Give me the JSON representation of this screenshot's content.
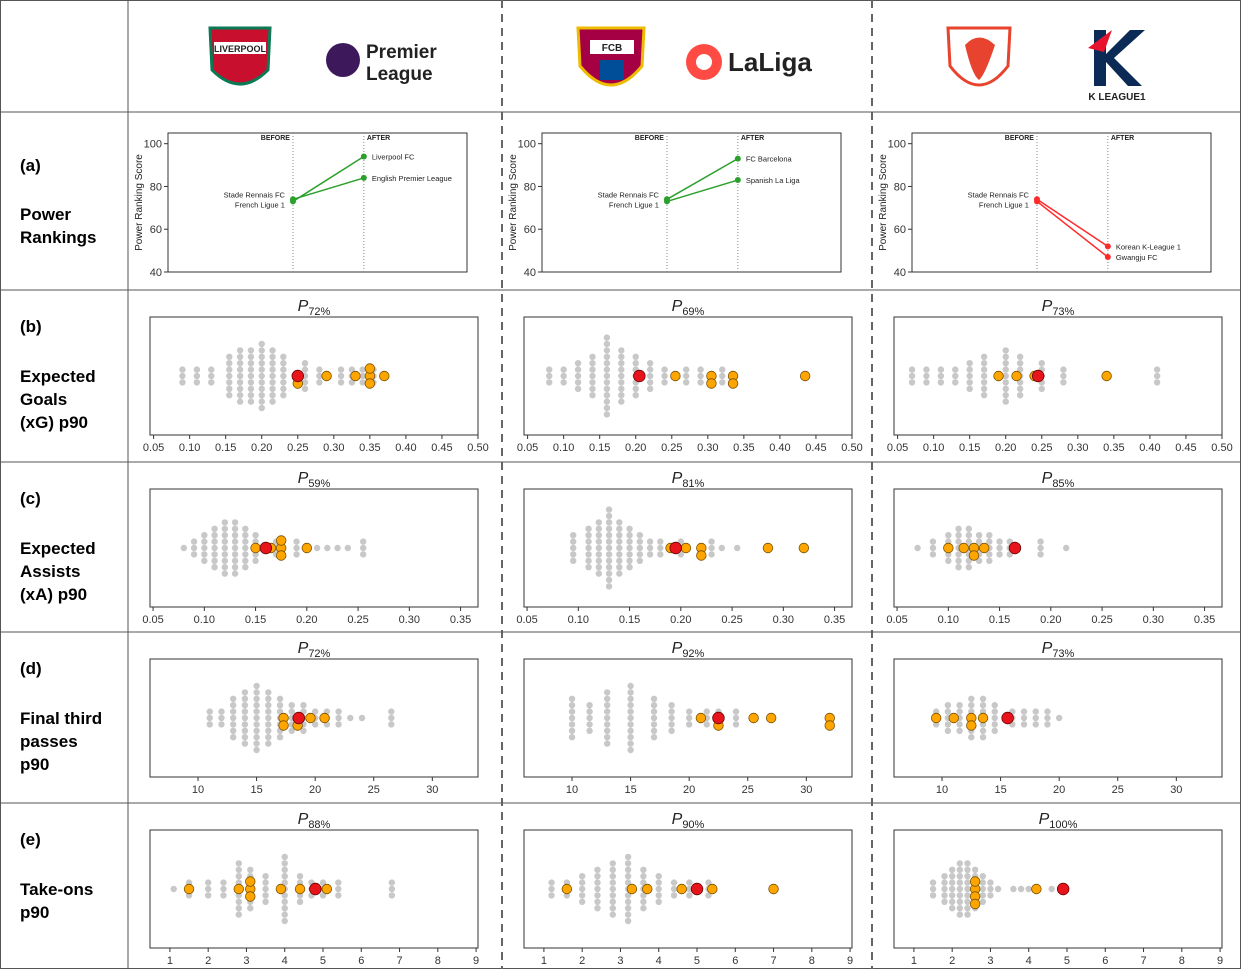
{
  "header": {
    "logos": [
      {
        "crest": "LIVERPOOL",
        "league": [
          "Premier",
          "League"
        ]
      },
      {
        "crest": "FCB",
        "league": [
          "LaLiga"
        ]
      },
      {
        "crest": "",
        "league": [
          "K LEAGUE1"
        ]
      }
    ]
  },
  "power": {
    "type": "line",
    "letter": "(a)",
    "label": [
      "Power",
      "Rankings"
    ],
    "ylabel": "Power Ranking Score",
    "categories": [
      "BEFORE",
      "AFTER"
    ],
    "ylim": [
      40,
      105
    ],
    "yticks": [
      40,
      60,
      80,
      100
    ],
    "charts": [
      {
        "before_labels": [
          "Stade Rennais FC",
          "French Ligue 1"
        ],
        "series": [
          {
            "name": "Liverpool FC",
            "color": "#2ca02c",
            "values": [
              73,
              94
            ]
          },
          {
            "name": "English Premier League",
            "color": "#2ca02c",
            "values": [
              74,
              84
            ]
          }
        ]
      },
      {
        "before_labels": [
          "Stade Rennais FC",
          "French Ligue 1"
        ],
        "series": [
          {
            "name": "FC Barcelona",
            "color": "#2ca02c",
            "values": [
              74,
              93
            ]
          },
          {
            "name": "Spanish La Liga",
            "color": "#2ca02c",
            "values": [
              73,
              83
            ]
          }
        ]
      },
      {
        "before_labels": [
          "Stade Rennais FC",
          "French Ligue 1"
        ],
        "series": [
          {
            "name": "Korean K-League 1",
            "color": "#ff2a2a",
            "values": [
              74,
              52
            ]
          },
          {
            "name": "Gwangju FC",
            "color": "#ff2a2a",
            "values": [
              73,
              47
            ]
          }
        ]
      }
    ]
  },
  "metrics": {
    "colors": {
      "population": "#c8c8c8",
      "peers": "#ffa500",
      "player": "#e8141c"
    },
    "rows": [
      {
        "type": "swarm",
        "letter": "(b)",
        "label": [
          "Expected",
          "Goals",
          "(xG) p90"
        ],
        "xlim": [
          0.045,
          0.5
        ],
        "xticks": [
          0.05,
          {
            "value": 0.1,
            "label": "0.10"
          },
          0.15,
          {
            "value": 0.2,
            "label": "0.20"
          },
          0.25,
          {
            "value": 0.3,
            "label": "0.30"
          },
          0.35,
          {
            "value": 0.4,
            "label": "0.40"
          },
          0.45,
          {
            "value": 0.5,
            "label": "0.50"
          }
        ],
        "charts": [
          {
            "title": "P",
            "title_sub": "72%",
            "gray": {
              "x": [
                0.09,
                0.11,
                0.13,
                0.155,
                0.17,
                0.185,
                0.2,
                0.215,
                0.23,
                0.26,
                0.28,
                0.31,
                0.325,
                0.34,
                0.355
              ],
              "n": [
                3,
                3,
                3,
                7,
                9,
                9,
                11,
                9,
                7,
                5,
                3,
                3,
                3,
                3,
                3
              ]
            },
            "orange": [
              0.25,
              0.25,
              0.29,
              0.33,
              0.35,
              0.35,
              0.35,
              0.37
            ],
            "red": 0.25
          },
          {
            "title": "P",
            "title_sub": "69%",
            "gray": {
              "x": [
                0.08,
                0.1,
                0.12,
                0.14,
                0.16,
                0.18,
                0.2,
                0.22,
                0.24,
                0.27,
                0.29,
                0.32
              ],
              "n": [
                3,
                3,
                5,
                7,
                13,
                9,
                7,
                5,
                3,
                3,
                3,
                3
              ]
            },
            "orange": [
              0.255,
              0.305,
              0.305,
              0.335,
              0.335,
              0.435
            ],
            "red": 0.205
          },
          {
            "title": "P",
            "title_sub": "73%",
            "gray": {
              "x": [
                0.07,
                0.09,
                0.11,
                0.13,
                0.15,
                0.17,
                0.2,
                0.22,
                0.25,
                0.28,
                0.41
              ],
              "n": [
                3,
                3,
                3,
                3,
                5,
                7,
                9,
                7,
                5,
                3,
                3
              ]
            },
            "orange": [
              0.19,
              0.215,
              0.24,
              0.34
            ],
            "red": 0.245
          }
        ]
      },
      {
        "type": "swarm",
        "letter": "(c)",
        "label": [
          "Expected",
          "Assists",
          "(xA) p90"
        ],
        "xlim": [
          0.047,
          0.367
        ],
        "xticks": [
          0.05,
          {
            "value": 0.1,
            "label": "0.10"
          },
          0.15,
          {
            "value": 0.2,
            "label": "0.20"
          },
          0.25,
          {
            "value": 0.3,
            "label": "0.30"
          },
          0.35
        ],
        "charts": [
          {
            "title": "P",
            "title_sub": "59%",
            "gray": {
              "x": [
                0.08,
                0.09,
                0.1,
                0.11,
                0.12,
                0.13,
                0.14,
                0.15,
                0.17,
                0.19,
                0.21,
                0.22,
                0.23,
                0.24,
                0.255
              ],
              "n": [
                1,
                3,
                5,
                7,
                9,
                9,
                7,
                5,
                3,
                3,
                1,
                1,
                1,
                1,
                3
              ]
            },
            "orange": [
              0.15,
              0.165,
              0.175,
              0.175,
              0.175,
              0.2
            ],
            "red": 0.16
          },
          {
            "title": "P",
            "title_sub": "81%",
            "gray": {
              "x": [
                0.095,
                0.11,
                0.12,
                0.13,
                0.14,
                0.15,
                0.16,
                0.17,
                0.18,
                0.2,
                0.23,
                0.24,
                0.255
              ],
              "n": [
                5,
                7,
                9,
                13,
                9,
                7,
                5,
                3,
                3,
                3,
                3,
                1,
                1
              ]
            },
            "orange": [
              0.19,
              0.205,
              0.22,
              0.22,
              0.285,
              0.32
            ],
            "red": 0.195
          },
          {
            "title": "P",
            "title_sub": "85%",
            "gray": {
              "x": [
                0.07,
                0.085,
                0.1,
                0.11,
                0.12,
                0.13,
                0.14,
                0.15,
                0.16,
                0.19,
                0.215
              ],
              "n": [
                1,
                3,
                5,
                7,
                7,
                5,
                5,
                3,
                3,
                3,
                1
              ]
            },
            "orange": [
              0.1,
              0.115,
              0.125,
              0.125,
              0.135
            ],
            "red": 0.165
          }
        ]
      },
      {
        "type": "swarm",
        "letter": "(d)",
        "label": [
          "Final third",
          "passes",
          "p90"
        ],
        "xlim": [
          5.9,
          33.9
        ],
        "xticks": [
          10,
          15,
          20,
          25,
          30
        ],
        "charts": [
          {
            "title": "P",
            "title_sub": "72%",
            "gray": {
              "x": [
                11,
                12,
                13,
                14,
                15,
                16,
                17,
                18,
                19,
                20,
                21,
                22,
                23,
                24,
                26.5
              ],
              "n": [
                3,
                3,
                7,
                9,
                11,
                9,
                7,
                5,
                5,
                3,
                3,
                3,
                1,
                1,
                3
              ]
            },
            "orange": [
              17.3,
              17.3,
              18.5,
              18.5,
              19.6,
              20.8
            ],
            "red": 18.6
          },
          {
            "title": "P",
            "title_sub": "92%",
            "gray": {
              "x": [
                10,
                11.5,
                13,
                15,
                17,
                18.5,
                20,
                21.5,
                22.5,
                24
              ],
              "n": [
                7,
                5,
                9,
                11,
                7,
                5,
                3,
                3,
                3,
                3
              ]
            },
            "orange": [
              21,
              22.5,
              22.5,
              25.5,
              27,
              32,
              32
            ],
            "red": 22.5
          },
          {
            "title": "P",
            "title_sub": "73%",
            "gray": {
              "x": [
                9.5,
                10.5,
                11.5,
                12.5,
                13.5,
                14.5,
                16,
                17,
                18,
                19,
                20
              ],
              "n": [
                3,
                5,
                5,
                7,
                7,
                5,
                3,
                3,
                3,
                3,
                1
              ]
            },
            "orange": [
              9.5,
              11,
              12.5,
              12.5,
              13.5
            ],
            "red": 15.6
          }
        ]
      },
      {
        "type": "swarm",
        "letter": "(e)",
        "label": [
          "Take-ons",
          "p90"
        ],
        "xlim": [
          0.48,
          9.05
        ],
        "xticks": [
          1,
          2,
          3,
          4,
          5,
          6,
          7,
          8,
          9
        ],
        "charts": [
          {
            "title": "P",
            "title_sub": "88%",
            "gray": {
              "x": [
                1.1,
                1.5,
                2,
                2.4,
                2.8,
                3.1,
                3.5,
                4,
                4.4,
                4.7,
                5,
                5.4,
                6.8
              ],
              "n": [
                1,
                3,
                3,
                3,
                9,
                7,
                5,
                11,
                5,
                3,
                3,
                3,
                3
              ]
            },
            "orange": [
              1.5,
              2.8,
              3.1,
              3.1,
              3.1,
              3.9,
              4.4,
              5.1
            ],
            "red": 4.8
          },
          {
            "title": "P",
            "title_sub": "90%",
            "gray": {
              "x": [
                1.2,
                1.6,
                2,
                2.4,
                2.8,
                3.2,
                3.6,
                4,
                4.4,
                4.8,
                5.3
              ],
              "n": [
                3,
                3,
                5,
                7,
                9,
                11,
                7,
                5,
                3,
                3,
                3
              ]
            },
            "orange": [
              1.6,
              3.3,
              3.7,
              4.6,
              5.4,
              7
            ],
            "red": 5
          },
          {
            "title": "P",
            "title_sub": "100%",
            "gray": {
              "x": [
                1.5,
                1.8,
                2,
                2.2,
                2.4,
                2.6,
                2.8,
                3,
                3.2,
                3.6,
                3.8,
                4,
                4.6
              ],
              "n": [
                3,
                5,
                7,
                9,
                9,
                7,
                5,
                3,
                1,
                1,
                1,
                1,
                1
              ]
            },
            "orange": [
              2.6,
              2.6,
              2.6,
              2.6,
              4.2
            ],
            "red": 4.9
          }
        ]
      }
    ]
  }
}
